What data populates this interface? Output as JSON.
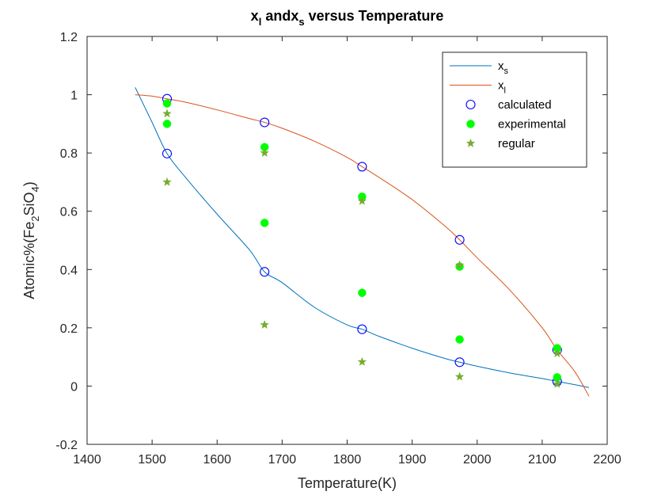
{
  "chart_data": {
    "type": "scatter",
    "title": {
      "part1": "x",
      "sub1": "l",
      "part2": " and",
      "part3": "x",
      "sub2": "s",
      "part4": " versus Temperature"
    },
    "xlabel": "Temperature(K)",
    "ylabel": {
      "p1": "Atomic%(Fe",
      "s1": "2",
      "p2": "SiO",
      "s2": "4",
      "p3": ")"
    },
    "xlim": [
      1400,
      2200
    ],
    "ylim": [
      -0.2,
      1.2
    ],
    "xticks": [
      1400,
      1500,
      1600,
      1700,
      1800,
      1900,
      2000,
      2100,
      2200
    ],
    "yticks": [
      -0.2,
      0,
      0.2,
      0.4,
      0.6,
      0.8,
      1,
      1.2
    ],
    "xtick_labels": [
      "1400",
      "1500",
      "1600",
      "1700",
      "1800",
      "1900",
      "2000",
      "2100",
      "2200"
    ],
    "ytick_labels": [
      "-0.2",
      "0",
      "0.2",
      "0.4",
      "0.6",
      "0.8",
      "1",
      "1.2"
    ],
    "grid": false,
    "legend_position": "top-right",
    "series": [
      {
        "kind": "line",
        "legend_main": "x",
        "legend_sub": "s",
        "color": "#0072BD",
        "x": [
          1474,
          1500,
          1523,
          1550,
          1600,
          1650,
          1673,
          1700,
          1750,
          1800,
          1823,
          1850,
          1900,
          1950,
          1973,
          2000,
          2050,
          2100,
          2123,
          2150,
          2172
        ],
        "y": [
          1.025,
          0.905,
          0.798,
          0.72,
          0.59,
          0.467,
          0.392,
          0.355,
          0.27,
          0.21,
          0.195,
          0.17,
          0.13,
          0.095,
          0.082,
          0.068,
          0.045,
          0.026,
          0.016,
          0.005,
          -0.005
        ]
      },
      {
        "kind": "line",
        "legend_main": "x",
        "legend_sub": "l",
        "color": "#D95319",
        "x": [
          1474,
          1500,
          1523,
          1550,
          1600,
          1650,
          1673,
          1700,
          1750,
          1800,
          1823,
          1850,
          1900,
          1950,
          1973,
          2000,
          2050,
          2100,
          2123,
          2150,
          2172
        ],
        "y": [
          1.0,
          0.995,
          0.986,
          0.975,
          0.948,
          0.918,
          0.905,
          0.885,
          0.84,
          0.785,
          0.753,
          0.715,
          0.64,
          0.55,
          0.502,
          0.44,
          0.33,
          0.2,
          0.124,
          0.05,
          -0.035
        ]
      },
      {
        "kind": "open-circle",
        "legend_main": "calculated",
        "color": "#0000FF",
        "x": [
          1523,
          1523,
          1673,
          1673,
          1823,
          1823,
          1973,
          1973,
          2123,
          2123
        ],
        "y": [
          0.986,
          0.798,
          0.905,
          0.392,
          0.753,
          0.195,
          0.502,
          0.082,
          0.124,
          0.016
        ]
      },
      {
        "kind": "filled-circle",
        "legend_main": "experimental",
        "color": "#00FF00",
        "x": [
          1523,
          1523,
          1673,
          1673,
          1823,
          1823,
          1973,
          1973,
          2123,
          2123
        ],
        "y": [
          0.97,
          0.9,
          0.82,
          0.56,
          0.65,
          0.32,
          0.41,
          0.16,
          0.13,
          0.03
        ]
      },
      {
        "kind": "star",
        "legend_main": "regular",
        "color": "#77AC30",
        "x": [
          1523,
          1523,
          1673,
          1673,
          1823,
          1823,
          1973,
          1973,
          2123,
          2123
        ],
        "y": [
          0.935,
          0.7,
          0.8,
          0.21,
          0.635,
          0.083,
          0.415,
          0.032,
          0.112,
          0.007
        ]
      }
    ]
  }
}
